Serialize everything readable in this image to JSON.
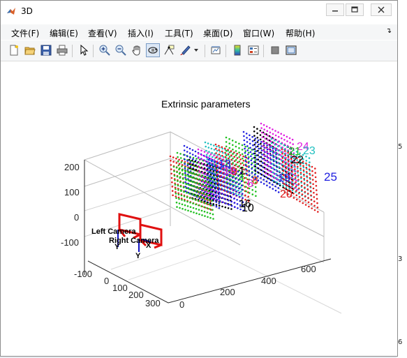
{
  "window": {
    "title": "3D",
    "controls": [
      "minimize",
      "maximize",
      "close"
    ]
  },
  "menu": {
    "items": [
      "文件(F)",
      "编辑(E)",
      "查看(V)",
      "插入(I)",
      "工具(T)",
      "桌面(D)",
      "窗口(W)",
      "帮助(H)"
    ]
  },
  "toolbar": {
    "icons": [
      "new-figure-icon",
      "open-file-icon",
      "save-icon",
      "print-icon",
      "select-arrow-icon",
      "zoom-in-icon",
      "zoom-out-icon",
      "pan-hand-icon",
      "rotate-3d-icon",
      "data-cursor-icon",
      "brush-icon",
      "brush-dropdown-icon",
      "link-plot-icon",
      "insert-colorbar-icon",
      "insert-legend-icon",
      "hide-plot-tools-icon",
      "show-plot-tools-icon"
    ]
  },
  "background_right": {
    "labels": [
      "5",
      "3",
      "6"
    ]
  },
  "figure": {
    "title": "Extrinsic parameters",
    "z_ticks": [
      "200",
      "100",
      "0",
      "-100"
    ],
    "x_ticks": [
      "-100",
      "0",
      "100",
      "200",
      "300"
    ],
    "y_ticks": [
      "0",
      "200",
      "400",
      "600"
    ],
    "camera_labels": {
      "left": "Left Camera",
      "right": "Right Camera",
      "axis_z": "Z",
      "axis_x": "X",
      "axis_y": "Y"
    },
    "board_labels": [
      {
        "text": "24",
        "color": "#e020e0"
      },
      {
        "text": "23",
        "color": "#20c0c0"
      },
      {
        "text": "21",
        "color": "#20c020"
      },
      {
        "text": "22",
        "color": "#000000"
      },
      {
        "text": "25",
        "color": "#2020e0"
      },
      {
        "text": "19",
        "color": "#2020e0"
      },
      {
        "text": "20",
        "color": "#e02020"
      },
      {
        "text": "13",
        "color": "#2020e0"
      },
      {
        "text": "18",
        "color": "#e020e0"
      },
      {
        "text": "9",
        "color": "#e02020"
      },
      {
        "text": "1",
        "color": "#000000"
      },
      {
        "text": "6",
        "color": "#e020e0"
      },
      {
        "text": "8",
        "color": "#e02020"
      },
      {
        "text": "4",
        "color": "#20c020"
      },
      {
        "text": "16",
        "color": "#000000"
      },
      {
        "text": "10",
        "color": "#000000"
      }
    ],
    "colors": {
      "camera": "#e01010",
      "axis_blue": "#1010c0"
    }
  }
}
